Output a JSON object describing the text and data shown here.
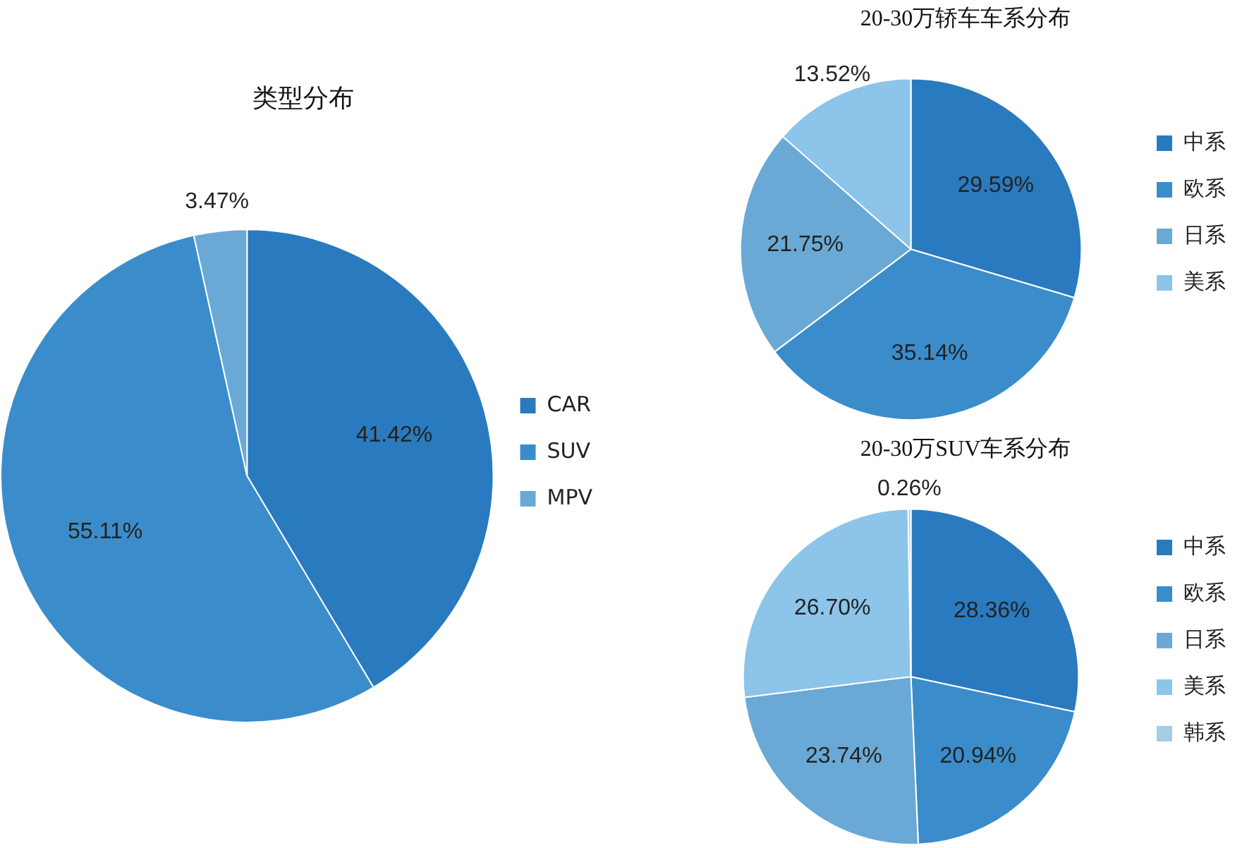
{
  "chart_data": [
    {
      "type": "pie",
      "title": "类型分布",
      "categories": [
        "CAR",
        "SUV",
        "MPV"
      ],
      "values": [
        41.42,
        55.11,
        3.47
      ],
      "colors": [
        "#2a7abf",
        "#3a8dca",
        "#6aa9d5"
      ],
      "legend": "right",
      "value_labels": [
        "41.42%",
        "55.11%",
        "3.47%"
      ]
    },
    {
      "type": "pie",
      "title": "20-30万轿车车系分布",
      "categories": [
        "中系",
        "欧系",
        "日系",
        "美系"
      ],
      "values": [
        29.59,
        35.14,
        21.75,
        13.52
      ],
      "colors": [
        "#2a7abf",
        "#3a8dca",
        "#6aa9d5",
        "#8cc4ea"
      ],
      "legend": "right",
      "value_labels": [
        "29.59%",
        "35.14%",
        "21.75%",
        "13.52%"
      ]
    },
    {
      "type": "pie",
      "title": "20-30万SUV车系分布",
      "categories": [
        "中系",
        "欧系",
        "日系",
        "美系",
        "韩系"
      ],
      "values": [
        28.36,
        20.94,
        23.74,
        26.7,
        0.26
      ],
      "colors": [
        "#2a7abf",
        "#3a8dca",
        "#6aa9d5",
        "#8cc4ea",
        "#a3cce6"
      ],
      "legend": "right",
      "value_labels": [
        "28.36%",
        "20.94%",
        "23.74%",
        "26.70%",
        "0.26%"
      ]
    }
  ]
}
